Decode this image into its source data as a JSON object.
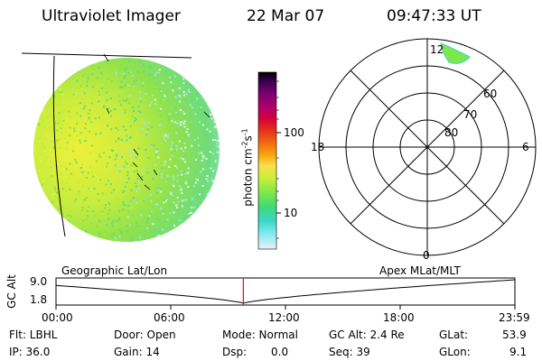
{
  "header": {
    "instrument": "Ultraviolet Imager",
    "date": "22 Mar 07",
    "time": "09:47:33 UT"
  },
  "colorbar": {
    "label": "photon cm-2s-1",
    "ticks": [
      "100",
      "10"
    ],
    "colors": [
      "#000000",
      "#3a0050",
      "#7a0070",
      "#b0006a",
      "#d4003c",
      "#e8301c",
      "#f06a10",
      "#f7a80a",
      "#f8e04c",
      "#c9ef3a",
      "#7ee84a",
      "#3fda78",
      "#3ad7c8",
      "#7fe9ef",
      "#cfeef4",
      "#eaf2f6"
    ]
  },
  "polar_plot": {
    "mlt_labels": [
      "12",
      "18",
      "6",
      "0"
    ],
    "lat_labels": [
      "60",
      "70",
      "80"
    ]
  },
  "geo_panel": {
    "left_label": "Geographic Lat/Lon",
    "right_label": "Apex MLat/MLT"
  },
  "gc_alt_plot": {
    "ylabel": "GC Alt",
    "ytick_top": "9.0",
    "ytick_bottom": "1.8",
    "xticks": [
      "00:00",
      "06:00",
      "12:00",
      "18:00",
      "23:59"
    ],
    "current_time_marker_hour": 9.79
  },
  "status": {
    "flt": "Flt: LBHL",
    "ip": "IP: 36.0",
    "door": "Door: Open",
    "gain": "Gain: 14",
    "mode": "Mode: Normal",
    "dsp": "Dsp:",
    "dsp_val": "0.0",
    "gc_alt": "GC Alt: 2.4 Re",
    "seq": "Seq: 39",
    "glat_label": "GLat:",
    "glat_val": "53.9",
    "glon_label": "GLon:",
    "glon_val": "9.1"
  }
}
